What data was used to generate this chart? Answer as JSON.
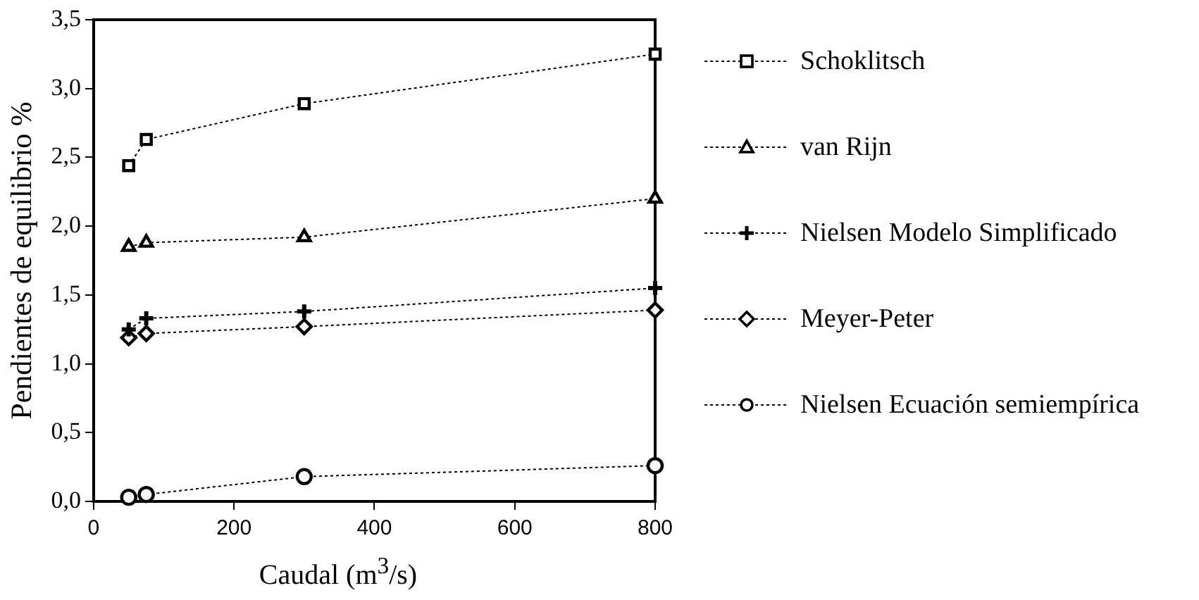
{
  "chart_data": {
    "type": "line",
    "xlabel": "Caudal (m$^{3}$/s)",
    "ylabel": "Pendientes de equilibrio %",
    "xlim": [
      0,
      800
    ],
    "xticks": [
      0,
      200,
      400,
      600,
      800
    ],
    "ylim": [
      0,
      3.5
    ],
    "yticks": [
      {
        "value": 0,
        "label": "0,0"
      },
      {
        "value": 0.5,
        "label": "0,5"
      },
      {
        "value": 1,
        "label": "1,0"
      },
      {
        "value": 1.5,
        "label": "1,5"
      },
      {
        "value": 2,
        "label": "2,0"
      },
      {
        "value": 2.5,
        "label": "2,5"
      },
      {
        "value": 3,
        "label": "3,0"
      },
      {
        "value": 3.5,
        "label": "3,5"
      }
    ],
    "x": [
      50,
      75,
      300,
      800
    ],
    "grid": false,
    "legend": "right",
    "line_style": "dotted",
    "series": [
      {
        "name": "Schoklitsch",
        "color": "#000000",
        "marker": "square",
        "values": [
          2.44,
          2.63,
          2.89,
          3.25
        ]
      },
      {
        "name": "van Rijn",
        "color": "#000000",
        "marker": "triangle",
        "values": [
          1.85,
          1.88,
          1.92,
          2.2
        ]
      },
      {
        "name": "Nielsen Modelo Simplificado",
        "color": "#000000",
        "marker": "cross",
        "values": [
          1.25,
          1.33,
          1.38,
          1.55
        ]
      },
      {
        "name": "Meyer-Peter",
        "color": "#000000",
        "marker": "diamond",
        "values": [
          1.19,
          1.22,
          1.27,
          1.39
        ]
      },
      {
        "name": "Nielsen Ecuación semiempírica",
        "color": "#000000",
        "marker": "circle",
        "values": [
          0.03,
          0.05,
          0.18,
          0.26
        ]
      }
    ]
  }
}
